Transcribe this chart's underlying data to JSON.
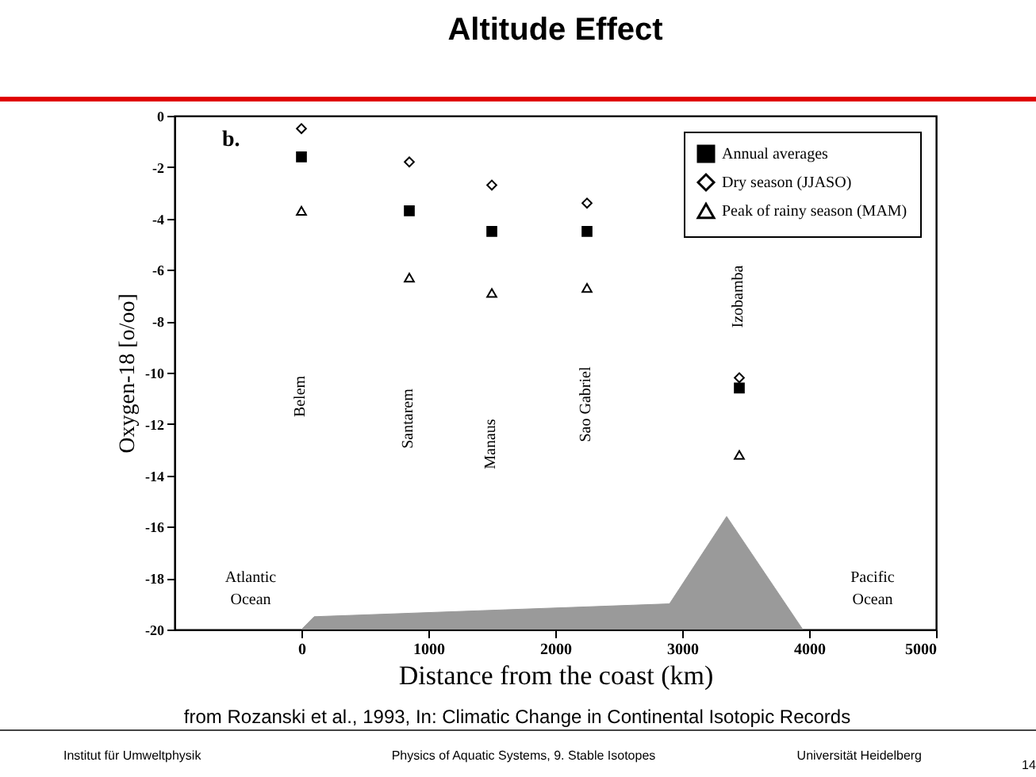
{
  "chart_data": {
    "type": "scatter",
    "title": "Altitude Effect",
    "xlabel": "Distance from the coast (km)",
    "ylabel": "Oxygen-18   [o/oo]",
    "xlim": [
      -1000,
      5000
    ],
    "xticks": [
      0,
      1000,
      2000,
      3000,
      4000,
      5000
    ],
    "ylim": [
      -20,
      0
    ],
    "yticks": [
      -20,
      -18,
      -16,
      -14,
      -12,
      -10,
      -8,
      -6,
      -4,
      -2,
      0
    ],
    "grid": false,
    "legend": "top right",
    "series": [
      {
        "type": "area",
        "color": "#9a9a9a",
        "x": [
          0,
          100,
          2900,
          3350,
          3950
        ],
        "values": [
          -20,
          -19.5,
          -19,
          -15.6,
          -20
        ]
      },
      {
        "name": "Annual averages",
        "color": "#000000",
        "marker": "square",
        "x": [
          0,
          850,
          1500,
          2250,
          3450
        ],
        "values": [
          -1.6,
          -3.7,
          -4.5,
          -4.5,
          -10.6
        ]
      },
      {
        "name": "Dry season (JJASO)",
        "color": "#000000",
        "marker": "diamond",
        "x": [
          0,
          850,
          1500,
          2250,
          3450
        ],
        "values": [
          -0.5,
          -1.8,
          -2.7,
          -3.4,
          -10.2
        ]
      },
      {
        "name": "Peak of rainy season (MAM)",
        "color": "#000000",
        "marker": "triangle",
        "x": [
          0,
          850,
          1500,
          2250,
          3450
        ],
        "values": [
          -3.7,
          -6.3,
          -6.9,
          -6.7,
          -13.2
        ]
      }
    ],
    "annotations": [
      "b.",
      "from Rozanski et al., 1993, In: Climatic Change in Continental Isotopic Records",
      "Institut für Umweltphysik",
      "Physics of Aquatic Systems, 9. Stable Isotopes",
      "Universität Heidelberg",
      "14",
      "Belem",
      "Santarem",
      "Manaus",
      "Sao Gabriel",
      "Izobamba",
      "Atlantic Ocean",
      "Pacific Ocean"
    ]
  }
}
